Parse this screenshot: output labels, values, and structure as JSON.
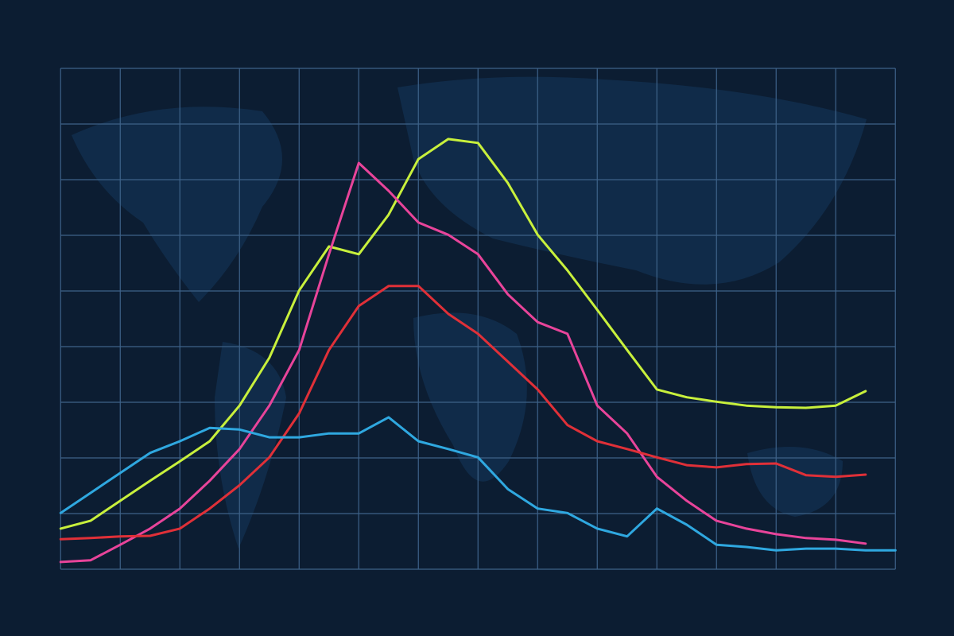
{
  "chart_data": {
    "type": "line",
    "x": [
      0,
      0.5,
      1,
      1.5,
      2,
      2.5,
      3,
      3.5,
      4,
      4.5,
      5,
      5.5,
      6,
      6.5,
      7,
      7.5,
      8,
      8.5,
      9,
      9.5,
      10,
      10.5,
      11,
      11.5,
      12,
      12.5,
      13,
      13.5,
      14
    ],
    "series": [
      {
        "color": "#c8f03c",
        "values": [
          0.73,
          0.87,
          1.23,
          1.59,
          1.94,
          2.3,
          2.94,
          3.8,
          5.01,
          5.8,
          5.66,
          6.37,
          7.37,
          7.73,
          7.66,
          6.94,
          6.01,
          5.37,
          4.66,
          3.94,
          3.23,
          3.09,
          3.01,
          2.94,
          2.91,
          2.9,
          2.94,
          3.2,
          null
        ]
      },
      {
        "color": "#e8449a",
        "values": [
          0.13,
          0.16,
          0.44,
          0.73,
          1.09,
          1.59,
          2.16,
          2.94,
          3.94,
          5.66,
          7.3,
          6.8,
          6.23,
          6.01,
          5.66,
          4.94,
          4.44,
          4.23,
          2.94,
          2.44,
          1.66,
          1.23,
          0.87,
          0.73,
          0.63,
          0.56,
          0.53,
          0.46,
          null
        ]
      },
      {
        "color": "#e03038",
        "values": [
          0.54,
          0.56,
          0.59,
          0.6,
          0.73,
          1.09,
          1.51,
          2.01,
          2.8,
          3.94,
          4.73,
          5.09,
          5.09,
          4.59,
          4.23,
          3.73,
          3.23,
          2.59,
          2.3,
          2.16,
          2.01,
          1.87,
          1.83,
          1.89,
          1.9,
          1.69,
          1.66,
          1.7,
          null
        ]
      },
      {
        "color": "#2fa8e0",
        "values": [
          1.01,
          1.37,
          1.73,
          2.09,
          2.3,
          2.54,
          2.51,
          2.37,
          2.37,
          2.44,
          2.44,
          2.73,
          2.3,
          2.16,
          2.01,
          1.44,
          1.09,
          1.01,
          0.73,
          0.59,
          1.09,
          0.8,
          0.44,
          0.4,
          0.34,
          0.37,
          0.37,
          0.34,
          0.34
        ]
      }
    ],
    "xlim": [
      -0.27,
      14.45
    ],
    "ylim": [
      0,
      9
    ],
    "xticks": [
      0,
      1,
      2,
      3,
      4,
      5,
      6,
      7,
      8,
      9,
      10,
      11,
      12,
      13,
      14
    ],
    "yticks": [
      0,
      1,
      2,
      3,
      4,
      5,
      6,
      7,
      8,
      9
    ],
    "grid": true
  }
}
